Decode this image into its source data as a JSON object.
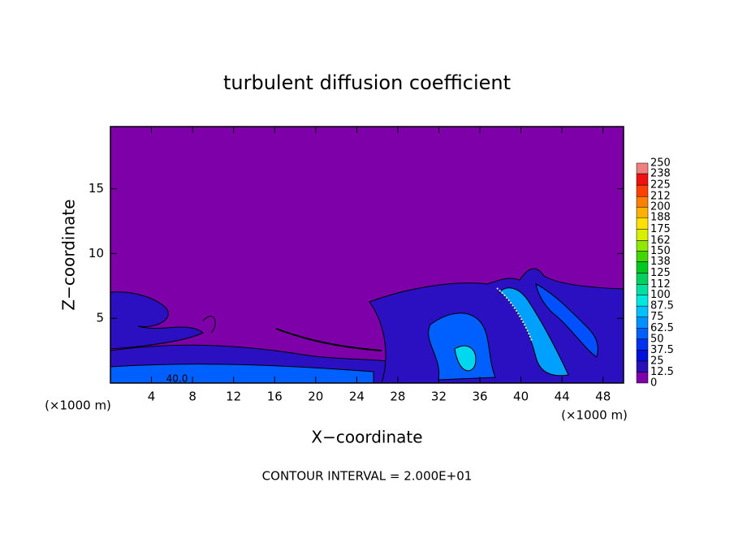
{
  "chart_data": {
    "type": "contour",
    "title": "turbulent diffusion coefficient",
    "xlabel": "X−coordinate",
    "ylabel": "Z−coordinate",
    "x_unit_label": "(×1000 m)",
    "footer": "CONTOUR INTERVAL = 2.000E+01",
    "contour_label": "40.0",
    "xlim": [
      0,
      50
    ],
    "ylim": [
      0,
      19.8
    ],
    "xticks": [
      4,
      8,
      12,
      16,
      20,
      24,
      28,
      32,
      36,
      40,
      44,
      48
    ],
    "yticks": [
      5,
      10,
      15
    ],
    "levels": [
      0,
      12.5,
      25,
      37.5,
      50,
      62.5,
      75,
      87.5,
      100,
      112,
      125,
      138,
      150,
      162,
      175,
      188,
      200,
      212,
      225,
      238,
      250
    ],
    "colors": [
      "#7d00a8",
      "#2a10b8",
      "#0010d8",
      "#0030f0",
      "#0060ff",
      "#0090ff",
      "#00c0ff",
      "#00e8e0",
      "#00e0a0",
      "#00d060",
      "#00c820",
      "#40d800",
      "#90e800",
      "#d8f000",
      "#ffe000",
      "#ffb000",
      "#ff8000",
      "#ff4000",
      "#f01010",
      "#f08080"
    ]
  }
}
